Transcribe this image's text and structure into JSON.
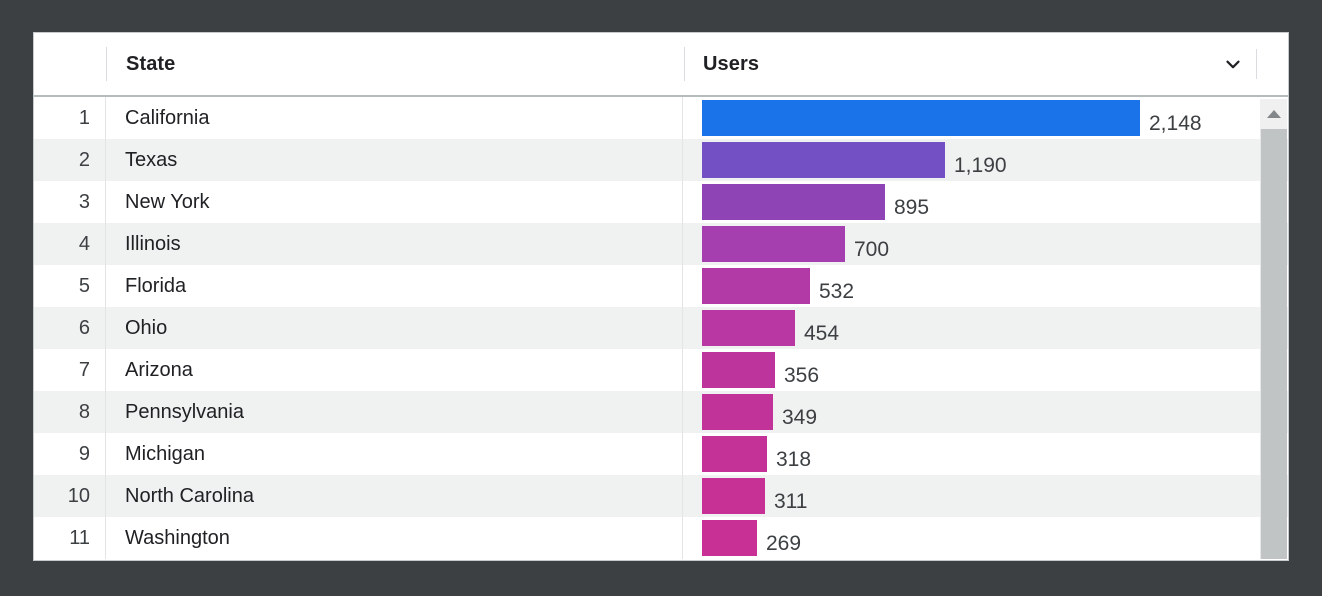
{
  "frame": {
    "background_color": "#3c4043"
  },
  "table": {
    "header": {
      "rank_label": "",
      "state_label": "State",
      "users_label": "Users"
    },
    "rows": [
      {
        "rank": "1",
        "state": "California",
        "users": 2148,
        "users_label": "2,148",
        "bar_color": "#1a73e8"
      },
      {
        "rank": "2",
        "state": "Texas",
        "users": 1190,
        "users_label": "1,190",
        "bar_color": "#7450c5"
      },
      {
        "rank": "3",
        "state": "New York",
        "users": 895,
        "users_label": "895",
        "bar_color": "#8f44b5"
      },
      {
        "rank": "4",
        "state": "Illinois",
        "users": 700,
        "users_label": "700",
        "bar_color": "#a53eae"
      },
      {
        "rank": "5",
        "state": "Florida",
        "users": 532,
        "users_label": "532",
        "bar_color": "#b23aa7"
      },
      {
        "rank": "6",
        "state": "Ohio",
        "users": 454,
        "users_label": "454",
        "bar_color": "#b837a2"
      },
      {
        "rank": "7",
        "state": "Arizona",
        "users": 356,
        "users_label": "356",
        "bar_color": "#bd359c"
      },
      {
        "rank": "8",
        "state": "Pennsylvania",
        "users": 349,
        "users_label": "349",
        "bar_color": "#c23399"
      },
      {
        "rank": "9",
        "state": "Michigan",
        "users": 318,
        "users_label": "318",
        "bar_color": "#c53297"
      },
      {
        "rank": "10",
        "state": "North Carolina",
        "users": 311,
        "users_label": "311",
        "bar_color": "#c73196"
      },
      {
        "rank": "11",
        "state": "Washington",
        "users": 269,
        "users_label": "269",
        "bar_color": "#c93095"
      }
    ],
    "accent_color_top": "#1a73e8",
    "accent_color_bottom": "#c93095",
    "stripe_color": "#f0f1f1"
  },
  "icons": {
    "sort_chevron": "chevron-down",
    "scroll_up_arrow": "triangle-up"
  },
  "chart_data": {
    "type": "bar",
    "orientation": "horizontal",
    "title": "",
    "xlabel": "Users",
    "ylabel": "State",
    "categories": [
      "California",
      "Texas",
      "New York",
      "Illinois",
      "Florida",
      "Ohio",
      "Arizona",
      "Pennsylvania",
      "Michigan",
      "North Carolina",
      "Washington"
    ],
    "values": [
      2148,
      1190,
      895,
      700,
      532,
      454,
      356,
      349,
      318,
      311,
      269
    ],
    "value_labels": [
      "2,148",
      "1,190",
      "895",
      "700",
      "532",
      "454",
      "356",
      "349",
      "318",
      "311",
      "269"
    ],
    "bar_colors": [
      "#1a73e8",
      "#7450c5",
      "#8f44b5",
      "#a53eae",
      "#b23aa7",
      "#b837a2",
      "#bd359c",
      "#c23399",
      "#c53297",
      "#c73196",
      "#c93095"
    ],
    "xlim": [
      0,
      2148
    ],
    "grid": false,
    "legend": false
  }
}
